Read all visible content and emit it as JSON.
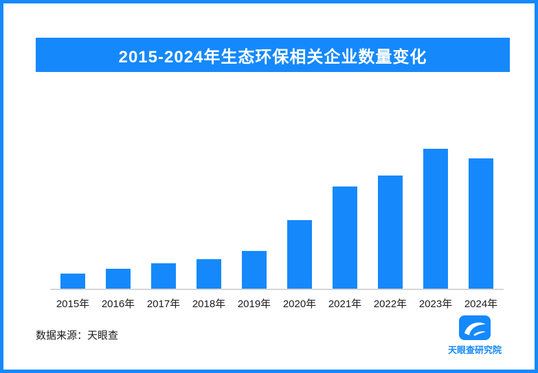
{
  "title_banner": {
    "text": "2015-2024年生态环保相关企业数量变化"
  },
  "footer": {
    "source": "数据来源：天眼查",
    "logo_text": "天眼查研究院",
    "logo_icon": "tianyancha-eye-swoosh-icon"
  },
  "colors": {
    "brand_blue": "#1589fb",
    "bar_blue": "#1589fb",
    "banner_text": "#ffffff",
    "axis_line": "#d6d6d6",
    "label_text": "#1a1a1a"
  },
  "chart_data": {
    "type": "bar",
    "title": "2015-2024年生态环保相关企业数量变化",
    "categories": [
      "2015年",
      "2016年",
      "2017年",
      "2018年",
      "2019年",
      "2020年",
      "2021年",
      "2022年",
      "2023年",
      "2024年"
    ],
    "values": [
      11,
      14,
      18,
      21,
      27,
      49,
      73,
      81,
      100,
      93
    ],
    "xlabel": "",
    "ylabel": "",
    "ylim": [
      0,
      100
    ],
    "bar_color": "#1589fb",
    "grid": false,
    "legend": "none",
    "y_axis_visible": false
  }
}
